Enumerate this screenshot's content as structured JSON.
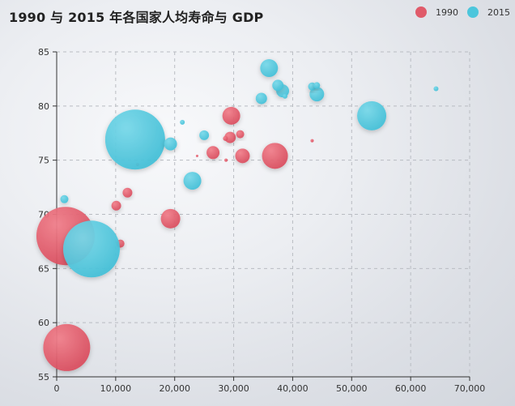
{
  "chart_data": {
    "type": "scatter",
    "title": "1990 与 2015 年各国家人均寿命与 GDP",
    "xlabel": "",
    "ylabel": "",
    "xlim": [
      0,
      70000
    ],
    "ylim": [
      55,
      85
    ],
    "x_ticks": [
      "0",
      "10,000",
      "20,000",
      "30,000",
      "40,000",
      "50,000",
      "60,000",
      "70,000"
    ],
    "y_ticks": [
      "55",
      "60",
      "65",
      "70",
      "75",
      "80",
      "85"
    ],
    "grid": true,
    "legend_position": "top-right",
    "colors": {
      "1990": "#e05b6a",
      "2015": "#4cc6dc"
    },
    "series": [
      {
        "name": "1990",
        "points": [
          {
            "x": 1500,
            "y": 68.0,
            "r": 36
          },
          {
            "x": 1700,
            "y": 57.7,
            "r": 29
          },
          {
            "x": 37000,
            "y": 75.4,
            "r": 16
          },
          {
            "x": 19300,
            "y": 69.6,
            "r": 12
          },
          {
            "x": 29600,
            "y": 79.1,
            "r": 11
          },
          {
            "x": 31500,
            "y": 75.4,
            "r": 9
          },
          {
            "x": 26500,
            "y": 75.7,
            "r": 8
          },
          {
            "x": 29400,
            "y": 77.1,
            "r": 7
          },
          {
            "x": 12000,
            "y": 72.0,
            "r": 6
          },
          {
            "x": 10100,
            "y": 70.8,
            "r": 6
          },
          {
            "x": 10800,
            "y": 67.3,
            "r": 5
          },
          {
            "x": 31100,
            "y": 77.4,
            "r": 5
          },
          {
            "x": 28600,
            "y": 77.0,
            "r": 3
          },
          {
            "x": 13700,
            "y": 74.6,
            "r": 2
          },
          {
            "x": 43300,
            "y": 76.8,
            "r": 2
          },
          {
            "x": 23800,
            "y": 75.4,
            "r": 1.5
          },
          {
            "x": 28700,
            "y": 75.0,
            "r": 2
          }
        ]
      },
      {
        "name": "2015",
        "points": [
          {
            "x": 13300,
            "y": 76.9,
            "r": 37
          },
          {
            "x": 5900,
            "y": 66.8,
            "r": 35
          },
          {
            "x": 53400,
            "y": 79.1,
            "r": 18
          },
          {
            "x": 36000,
            "y": 83.5,
            "r": 11
          },
          {
            "x": 23000,
            "y": 73.1,
            "r": 11
          },
          {
            "x": 44100,
            "y": 81.1,
            "r": 9
          },
          {
            "x": 38300,
            "y": 81.4,
            "r": 8
          },
          {
            "x": 37500,
            "y": 81.9,
            "r": 7
          },
          {
            "x": 19300,
            "y": 76.5,
            "r": 8
          },
          {
            "x": 34700,
            "y": 80.7,
            "r": 7
          },
          {
            "x": 25000,
            "y": 77.3,
            "r": 6
          },
          {
            "x": 43300,
            "y": 81.8,
            "r": 5
          },
          {
            "x": 44100,
            "y": 81.9,
            "r": 4
          },
          {
            "x": 1300,
            "y": 71.4,
            "r": 5
          },
          {
            "x": 38700,
            "y": 80.9,
            "r": 3
          },
          {
            "x": 21300,
            "y": 78.5,
            "r": 3
          },
          {
            "x": 64300,
            "y": 81.6,
            "r": 3
          }
        ]
      }
    ]
  }
}
